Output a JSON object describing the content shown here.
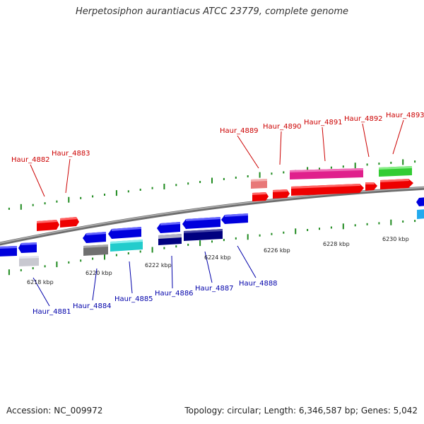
{
  "title": "Herpetosiphon aurantiacus ATCC 23779, complete genome",
  "footer": {
    "accession": "Accession: NC_009972",
    "topology": "Topology: circular; Length: 6,346,587 bp; Genes: 5,042"
  },
  "colors": {
    "backbone": "#8c8c8c",
    "tick": "#1f8a1f",
    "label_top": "#cc0000",
    "label_bottom": "#0000aa"
  },
  "kbp_labels": [
    "6218 kbp",
    "6220 kbp",
    "6222 kbp",
    "6224 kbp",
    "6226 kbp",
    "6228 kbp",
    "6230 kbp"
  ],
  "genes_top_labels": [
    "Haur_4882",
    "Haur_4883",
    "Haur_4889",
    "Haur_4890",
    "Haur_4891",
    "Haur_4892",
    "Haur_4893"
  ],
  "genes_bottom_labels": [
    "Haur_4881",
    "Haur_4884",
    "Haur_4885",
    "Haur_4886",
    "Haur_4887",
    "Haur_4888"
  ]
}
